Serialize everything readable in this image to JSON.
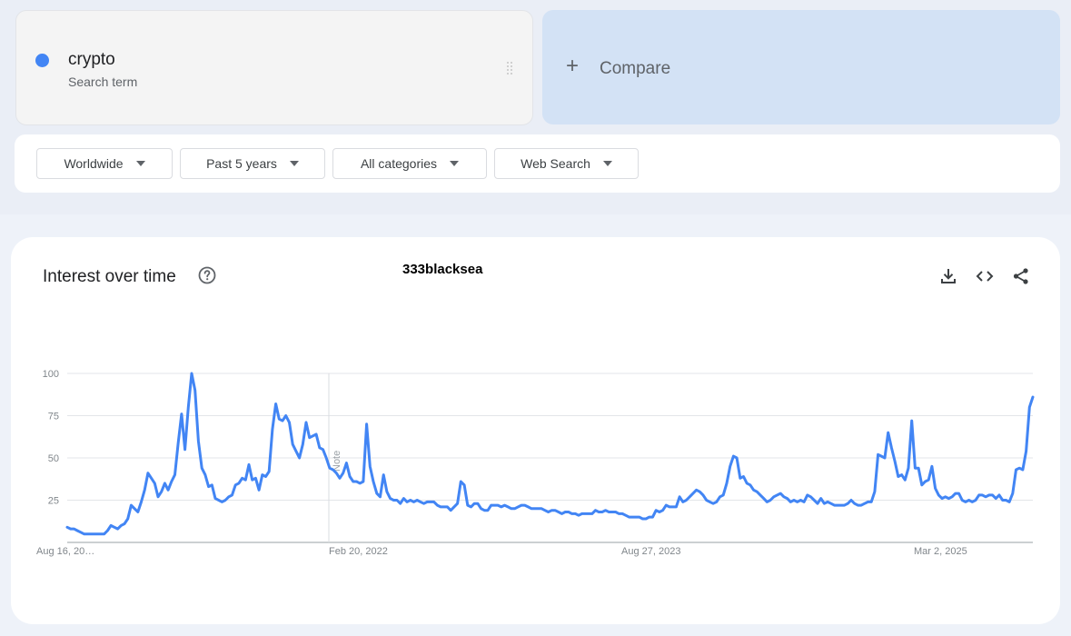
{
  "search_term": {
    "name": "crypto",
    "subtitle": "Search term",
    "color": "#4285f4"
  },
  "compare": {
    "label": "Compare"
  },
  "filters": [
    {
      "label": "Worldwide"
    },
    {
      "label": "Past 5 years"
    },
    {
      "label": "All categories"
    },
    {
      "label": "Web Search"
    }
  ],
  "panel": {
    "title": "Interest over time",
    "watermark": "333blacksea",
    "note_label": "Note"
  },
  "icons": {
    "help": "help-circle-icon",
    "download": "download-icon",
    "embed": "code-embed-icon",
    "share": "share-icon"
  },
  "chart_data": {
    "type": "line",
    "title": "Interest over time",
    "series": [
      {
        "name": "crypto",
        "color": "#4285f4"
      }
    ],
    "ylim": [
      0,
      100
    ],
    "yticks": [
      "100",
      "75",
      "50",
      "25"
    ],
    "xticks": [
      "Aug 16, 20…",
      "Feb 20, 2022",
      "Aug 27, 2023",
      "Mar 2, 2025"
    ],
    "grid": true,
    "values": [
      9,
      8,
      8,
      7,
      6,
      5,
      5,
      5,
      5,
      5,
      5,
      5,
      7,
      10,
      9,
      8,
      10,
      11,
      14,
      22,
      20,
      18,
      24,
      31,
      41,
      38,
      35,
      27,
      30,
      35,
      31,
      36,
      40,
      59,
      76,
      55,
      80,
      100,
      90,
      60,
      44,
      40,
      33,
      34,
      26,
      25,
      24,
      25,
      27,
      28,
      34,
      35,
      38,
      37,
      46,
      37,
      38,
      31,
      40,
      39,
      42,
      67,
      82,
      73,
      72,
      75,
      71,
      58,
      54,
      50,
      58,
      71,
      62,
      63,
      64,
      56,
      55,
      50,
      44,
      43,
      41,
      38,
      41,
      47,
      39,
      36,
      36,
      35,
      36,
      70,
      45,
      36,
      29,
      27,
      40,
      30,
      26,
      25,
      25,
      23,
      26,
      24,
      25,
      24,
      25,
      24,
      23,
      24,
      24,
      24,
      22,
      21,
      21,
      21,
      19,
      21,
      23,
      36,
      34,
      22,
      21,
      23,
      23,
      20,
      19,
      19,
      22,
      22,
      22,
      21,
      22,
      21,
      20,
      20,
      21,
      22,
      22,
      21,
      20,
      20,
      20,
      20,
      19,
      18,
      19,
      19,
      18,
      17,
      18,
      18,
      17,
      17,
      16,
      17,
      17,
      17,
      17,
      19,
      18,
      18,
      19,
      18,
      18,
      18,
      17,
      17,
      16,
      15,
      15,
      15,
      15,
      14,
      14,
      15,
      15,
      19,
      18,
      19,
      22,
      21,
      21,
      21,
      27,
      24,
      25,
      27,
      29,
      31,
      30,
      28,
      25,
      24,
      23,
      24,
      27,
      28,
      35,
      45,
      51,
      50,
      38,
      39,
      35,
      34,
      31,
      30,
      28,
      26,
      24,
      25,
      27,
      28,
      29,
      27,
      26,
      24,
      25,
      24,
      25,
      24,
      28,
      27,
      25,
      23,
      26,
      23,
      24,
      23,
      22,
      22,
      22,
      22,
      23,
      25,
      23,
      22,
      22,
      23,
      24,
      24,
      30,
      52,
      51,
      50,
      65,
      56,
      48,
      39,
      40,
      37,
      44,
      72,
      44,
      44,
      34,
      36,
      37,
      45,
      32,
      28,
      26,
      27,
      26,
      27,
      29,
      29,
      25,
      24,
      25,
      24,
      25,
      28,
      28,
      27,
      28,
      28,
      26,
      28,
      25,
      25,
      24,
      29,
      43,
      44,
      43,
      54,
      80,
      86
    ]
  }
}
